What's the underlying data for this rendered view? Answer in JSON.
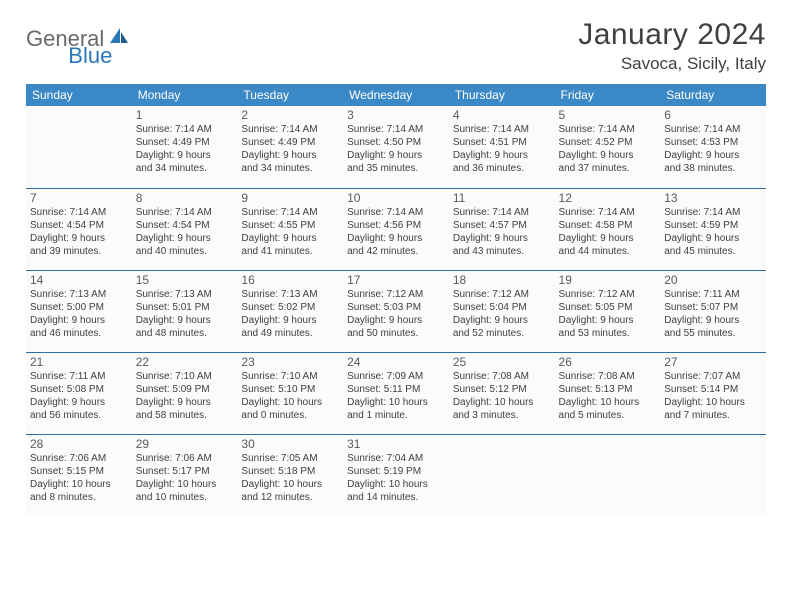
{
  "logo": {
    "first": "General",
    "second": "Blue"
  },
  "title": "January 2024",
  "location": "Savoca, Sicily, Italy",
  "colors": {
    "header_bg": "#3b88c6",
    "header_text": "#ffffff",
    "rule": "#2f6fa3",
    "text": "#404040",
    "logo_gray": "#6a6a6a",
    "logo_blue": "#2a77b8",
    "cell_bg": "#fbfbfb"
  },
  "weekdays": [
    "Sunday",
    "Monday",
    "Tuesday",
    "Wednesday",
    "Thursday",
    "Friday",
    "Saturday"
  ],
  "weeks": [
    [
      null,
      {
        "d": "1",
        "sr": "Sunrise: 7:14 AM",
        "ss": "Sunset: 4:49 PM",
        "dl1": "Daylight: 9 hours",
        "dl2": "and 34 minutes."
      },
      {
        "d": "2",
        "sr": "Sunrise: 7:14 AM",
        "ss": "Sunset: 4:49 PM",
        "dl1": "Daylight: 9 hours",
        "dl2": "and 34 minutes."
      },
      {
        "d": "3",
        "sr": "Sunrise: 7:14 AM",
        "ss": "Sunset: 4:50 PM",
        "dl1": "Daylight: 9 hours",
        "dl2": "and 35 minutes."
      },
      {
        "d": "4",
        "sr": "Sunrise: 7:14 AM",
        "ss": "Sunset: 4:51 PM",
        "dl1": "Daylight: 9 hours",
        "dl2": "and 36 minutes."
      },
      {
        "d": "5",
        "sr": "Sunrise: 7:14 AM",
        "ss": "Sunset: 4:52 PM",
        "dl1": "Daylight: 9 hours",
        "dl2": "and 37 minutes."
      },
      {
        "d": "6",
        "sr": "Sunrise: 7:14 AM",
        "ss": "Sunset: 4:53 PM",
        "dl1": "Daylight: 9 hours",
        "dl2": "and 38 minutes."
      }
    ],
    [
      {
        "d": "7",
        "sr": "Sunrise: 7:14 AM",
        "ss": "Sunset: 4:54 PM",
        "dl1": "Daylight: 9 hours",
        "dl2": "and 39 minutes."
      },
      {
        "d": "8",
        "sr": "Sunrise: 7:14 AM",
        "ss": "Sunset: 4:54 PM",
        "dl1": "Daylight: 9 hours",
        "dl2": "and 40 minutes."
      },
      {
        "d": "9",
        "sr": "Sunrise: 7:14 AM",
        "ss": "Sunset: 4:55 PM",
        "dl1": "Daylight: 9 hours",
        "dl2": "and 41 minutes."
      },
      {
        "d": "10",
        "sr": "Sunrise: 7:14 AM",
        "ss": "Sunset: 4:56 PM",
        "dl1": "Daylight: 9 hours",
        "dl2": "and 42 minutes."
      },
      {
        "d": "11",
        "sr": "Sunrise: 7:14 AM",
        "ss": "Sunset: 4:57 PM",
        "dl1": "Daylight: 9 hours",
        "dl2": "and 43 minutes."
      },
      {
        "d": "12",
        "sr": "Sunrise: 7:14 AM",
        "ss": "Sunset: 4:58 PM",
        "dl1": "Daylight: 9 hours",
        "dl2": "and 44 minutes."
      },
      {
        "d": "13",
        "sr": "Sunrise: 7:14 AM",
        "ss": "Sunset: 4:59 PM",
        "dl1": "Daylight: 9 hours",
        "dl2": "and 45 minutes."
      }
    ],
    [
      {
        "d": "14",
        "sr": "Sunrise: 7:13 AM",
        "ss": "Sunset: 5:00 PM",
        "dl1": "Daylight: 9 hours",
        "dl2": "and 46 minutes."
      },
      {
        "d": "15",
        "sr": "Sunrise: 7:13 AM",
        "ss": "Sunset: 5:01 PM",
        "dl1": "Daylight: 9 hours",
        "dl2": "and 48 minutes."
      },
      {
        "d": "16",
        "sr": "Sunrise: 7:13 AM",
        "ss": "Sunset: 5:02 PM",
        "dl1": "Daylight: 9 hours",
        "dl2": "and 49 minutes."
      },
      {
        "d": "17",
        "sr": "Sunrise: 7:12 AM",
        "ss": "Sunset: 5:03 PM",
        "dl1": "Daylight: 9 hours",
        "dl2": "and 50 minutes."
      },
      {
        "d": "18",
        "sr": "Sunrise: 7:12 AM",
        "ss": "Sunset: 5:04 PM",
        "dl1": "Daylight: 9 hours",
        "dl2": "and 52 minutes."
      },
      {
        "d": "19",
        "sr": "Sunrise: 7:12 AM",
        "ss": "Sunset: 5:05 PM",
        "dl1": "Daylight: 9 hours",
        "dl2": "and 53 minutes."
      },
      {
        "d": "20",
        "sr": "Sunrise: 7:11 AM",
        "ss": "Sunset: 5:07 PM",
        "dl1": "Daylight: 9 hours",
        "dl2": "and 55 minutes."
      }
    ],
    [
      {
        "d": "21",
        "sr": "Sunrise: 7:11 AM",
        "ss": "Sunset: 5:08 PM",
        "dl1": "Daylight: 9 hours",
        "dl2": "and 56 minutes."
      },
      {
        "d": "22",
        "sr": "Sunrise: 7:10 AM",
        "ss": "Sunset: 5:09 PM",
        "dl1": "Daylight: 9 hours",
        "dl2": "and 58 minutes."
      },
      {
        "d": "23",
        "sr": "Sunrise: 7:10 AM",
        "ss": "Sunset: 5:10 PM",
        "dl1": "Daylight: 10 hours",
        "dl2": "and 0 minutes."
      },
      {
        "d": "24",
        "sr": "Sunrise: 7:09 AM",
        "ss": "Sunset: 5:11 PM",
        "dl1": "Daylight: 10 hours",
        "dl2": "and 1 minute."
      },
      {
        "d": "25",
        "sr": "Sunrise: 7:08 AM",
        "ss": "Sunset: 5:12 PM",
        "dl1": "Daylight: 10 hours",
        "dl2": "and 3 minutes."
      },
      {
        "d": "26",
        "sr": "Sunrise: 7:08 AM",
        "ss": "Sunset: 5:13 PM",
        "dl1": "Daylight: 10 hours",
        "dl2": "and 5 minutes."
      },
      {
        "d": "27",
        "sr": "Sunrise: 7:07 AM",
        "ss": "Sunset: 5:14 PM",
        "dl1": "Daylight: 10 hours",
        "dl2": "and 7 minutes."
      }
    ],
    [
      {
        "d": "28",
        "sr": "Sunrise: 7:06 AM",
        "ss": "Sunset: 5:15 PM",
        "dl1": "Daylight: 10 hours",
        "dl2": "and 8 minutes."
      },
      {
        "d": "29",
        "sr": "Sunrise: 7:06 AM",
        "ss": "Sunset: 5:17 PM",
        "dl1": "Daylight: 10 hours",
        "dl2": "and 10 minutes."
      },
      {
        "d": "30",
        "sr": "Sunrise: 7:05 AM",
        "ss": "Sunset: 5:18 PM",
        "dl1": "Daylight: 10 hours",
        "dl2": "and 12 minutes."
      },
      {
        "d": "31",
        "sr": "Sunrise: 7:04 AM",
        "ss": "Sunset: 5:19 PM",
        "dl1": "Daylight: 10 hours",
        "dl2": "and 14 minutes."
      },
      null,
      null,
      null
    ]
  ]
}
